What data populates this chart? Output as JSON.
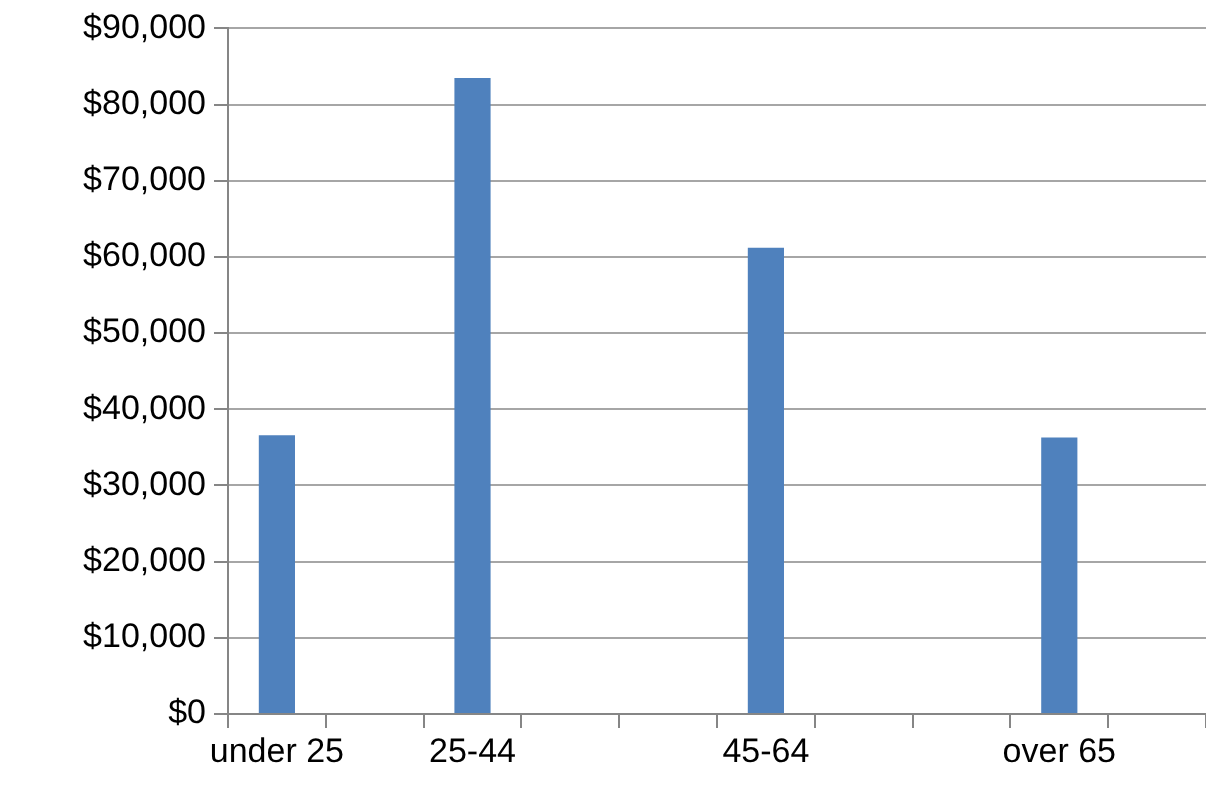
{
  "chart_data": {
    "type": "bar",
    "categories": [
      "under 25",
      null,
      "25-44",
      null,
      null,
      "45-64",
      null,
      null,
      "over 65",
      null
    ],
    "values": [
      36600,
      null,
      83500,
      null,
      null,
      61200,
      null,
      null,
      36300,
      null
    ],
    "color": "#4f81bd",
    "ylim": [
      0,
      90000
    ],
    "yticks": [
      {
        "value": 0,
        "label": "$0"
      },
      {
        "value": 10000,
        "label": "$10,000"
      },
      {
        "value": 20000,
        "label": "$20,000"
      },
      {
        "value": 30000,
        "label": "$30,000"
      },
      {
        "value": 40000,
        "label": "$40,000"
      },
      {
        "value": 50000,
        "label": "$50,000"
      },
      {
        "value": 60000,
        "label": "$60,000"
      },
      {
        "value": 70000,
        "label": "$70,000"
      },
      {
        "value": 80000,
        "label": "$80,000"
      },
      {
        "value": 90000,
        "label": "$90,000"
      }
    ],
    "grid": "y",
    "legend": false
  }
}
